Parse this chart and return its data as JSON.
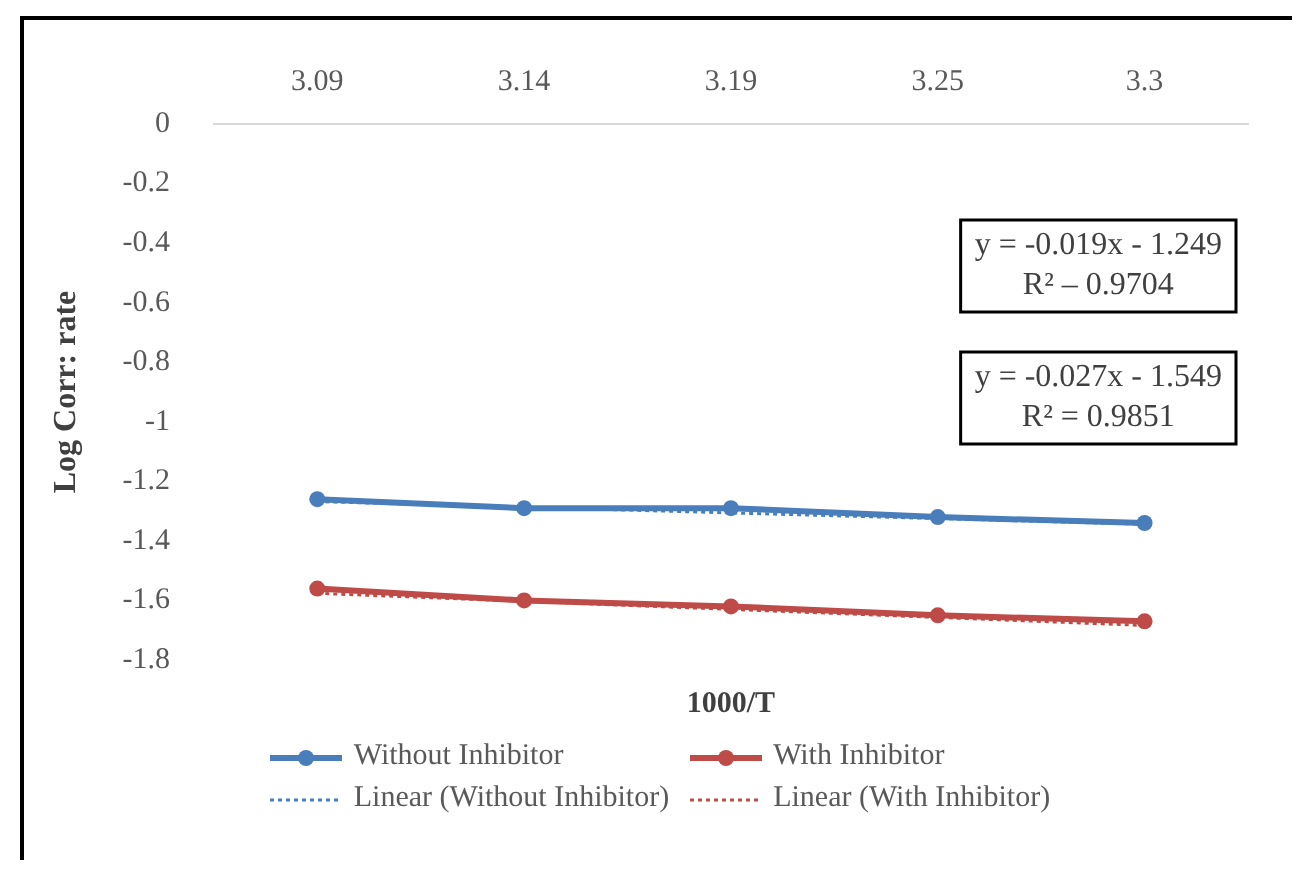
{
  "chart_data": {
    "type": "line",
    "xlabel": "1000/T",
    "ylabel": "Log Corr: rate",
    "categories": [
      "3.09",
      "3.14",
      "3.19",
      "3.25",
      "3.3"
    ],
    "ylim": [
      -1.8,
      0
    ],
    "yticks": [
      -1.8,
      -1.6,
      -1.4,
      -1.2,
      -1,
      -0.8,
      -0.6,
      -0.4,
      -0.2,
      0
    ],
    "grid": false,
    "legend": "bottom",
    "marker": "circle",
    "line_style": "solid",
    "series": [
      {
        "name": "Without Inhibitor",
        "color": "#4a7ebb",
        "values": [
          -1.26,
          -1.29,
          -1.29,
          -1.32,
          -1.34
        ]
      },
      {
        "name": "With Inhibitor",
        "color": "#be4b48",
        "values": [
          -1.56,
          -1.6,
          -1.62,
          -1.65,
          -1.67
        ]
      },
      {
        "name": "Linear (Without Inhibitor)",
        "color": "#4a7ebb",
        "marker": "none",
        "line_style": "dotted",
        "x": [
          "3.09",
          "3.14",
          "3.19",
          "3.25",
          "3.3"
        ],
        "values": [
          -1.268,
          -1.287,
          -1.306,
          -1.325,
          -1.344
        ]
      },
      {
        "name": "Linear (With Inhibitor)",
        "color": "#be4b48",
        "marker": "none",
        "line_style": "dotted",
        "x": [
          "3.09",
          "3.14",
          "3.19",
          "3.25",
          "3.3"
        ],
        "values": [
          -1.576,
          -1.603,
          -1.63,
          -1.657,
          -1.684
        ]
      }
    ],
    "annotations": [
      [
        "y = -0.019x - 1.249",
        "R² – 0.9704"
      ],
      [
        "y = -0.027x - 1.549",
        "R² = 0.9851"
      ]
    ]
  }
}
